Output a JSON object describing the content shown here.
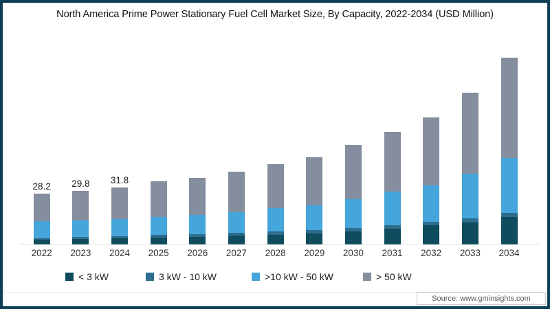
{
  "title": "North America Prime Power Stationary Fuel Cell Market Size, By Capacity, 2022-2034 (USD Million)",
  "source": "Source: www.gminsights.com",
  "colors": {
    "lt3kw": "#0e4c5e",
    "kw3to10": "#2e6d8e",
    "kw10to50": "#45a6db",
    "gt50kw": "#848e9f",
    "frame_border": "#0d3e54",
    "axis_line": "#dcdcdc"
  },
  "legend": {
    "items": [
      {
        "label": "< 3 kW",
        "color": "#0e4c5e"
      },
      {
        "label": "3 kW - 10 kW",
        "color": "#2e6d8e"
      },
      {
        "label": ">10 kW - 50 kW",
        "color": "#45a6db"
      },
      {
        "label": "> 50 kW",
        "color": "#848e9f"
      }
    ]
  },
  "chart_data": {
    "type": "bar",
    "stacked": true,
    "title": "North America Prime Power Stationary Fuel Cell Market Size, By Capacity, 2022-2034 (USD Million)",
    "xlabel": "",
    "ylabel": "USD Million",
    "ylim": [
      0,
      110
    ],
    "grid": false,
    "legend_position": "bottom",
    "categories": [
      "2022",
      "2023",
      "2024",
      "2025",
      "2026",
      "2027",
      "2028",
      "2029",
      "2030",
      "2031",
      "2032",
      "2033",
      "2034"
    ],
    "series": [
      {
        "name": "< 3 kW",
        "color": "#0e4c5e",
        "values": [
          2.5,
          3.0,
          3.4,
          4.0,
          4.4,
          5.0,
          5.5,
          6.3,
          7.3,
          8.8,
          10.7,
          12.3,
          15.3
        ]
      },
      {
        "name": "3 kW - 10 kW",
        "color": "#2e6d8e",
        "values": [
          1.0,
          1.1,
          1.2,
          1.3,
          1.4,
          1.5,
          1.6,
          1.7,
          1.8,
          1.9,
          2.0,
          2.1,
          2.2
        ]
      },
      {
        "name": ">10 kW - 50 kW",
        "color": "#45a6db",
        "values": [
          9.5,
          9.4,
          9.7,
          9.9,
          10.7,
          11.4,
          13.0,
          13.7,
          16.3,
          18.7,
          20.1,
          25.0,
          30.7
        ]
      },
      {
        "name": "> 50 kW",
        "color": "#848e9f",
        "values": [
          15.2,
          16.3,
          17.5,
          19.8,
          20.7,
          22.7,
          24.4,
          26.7,
          29.8,
          33.1,
          37.7,
          44.8,
          55.5
        ]
      }
    ],
    "totals": [
      28.2,
      29.8,
      31.8,
      35.0,
      37.2,
      40.6,
      44.5,
      48.4,
      55.2,
      62.5,
      70.5,
      84.2,
      103.7
    ],
    "data_labels": [
      "28.2",
      "29.8",
      "31.8",
      "",
      "",
      "",
      "",
      "",
      "",
      "",
      "",
      "",
      ""
    ]
  }
}
